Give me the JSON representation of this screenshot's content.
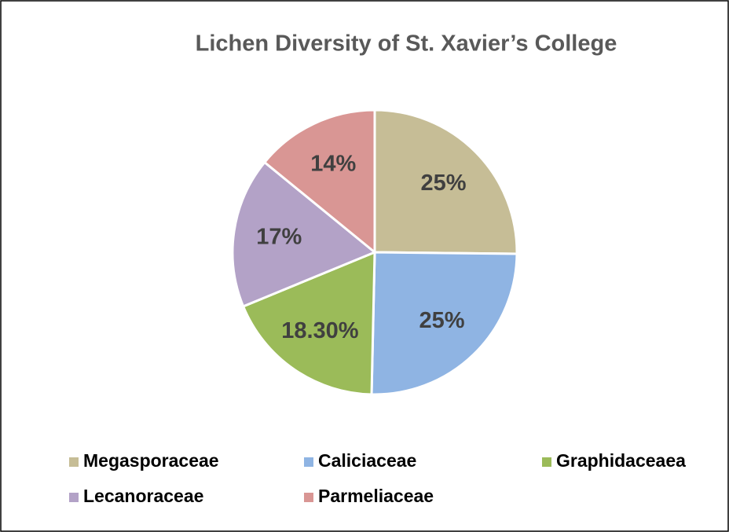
{
  "chart_data": {
    "type": "pie",
    "title": "Lichen Diversity of St. Xavier’s College",
    "categories": [
      "Megasporaceae",
      "Caliciaceae",
      "Graphidaceaea",
      "Lecanoraceae",
      "Parmeliaceae"
    ],
    "values": [
      25,
      25,
      18.3,
      17,
      14
    ],
    "value_labels": [
      "25%",
      "25%",
      "18.30%",
      "17%",
      "14%"
    ],
    "colors": [
      "#c6bd96",
      "#8fb4e3",
      "#9bbb59",
      "#b3a2c7",
      "#d99694"
    ],
    "legend": "bottom"
  }
}
